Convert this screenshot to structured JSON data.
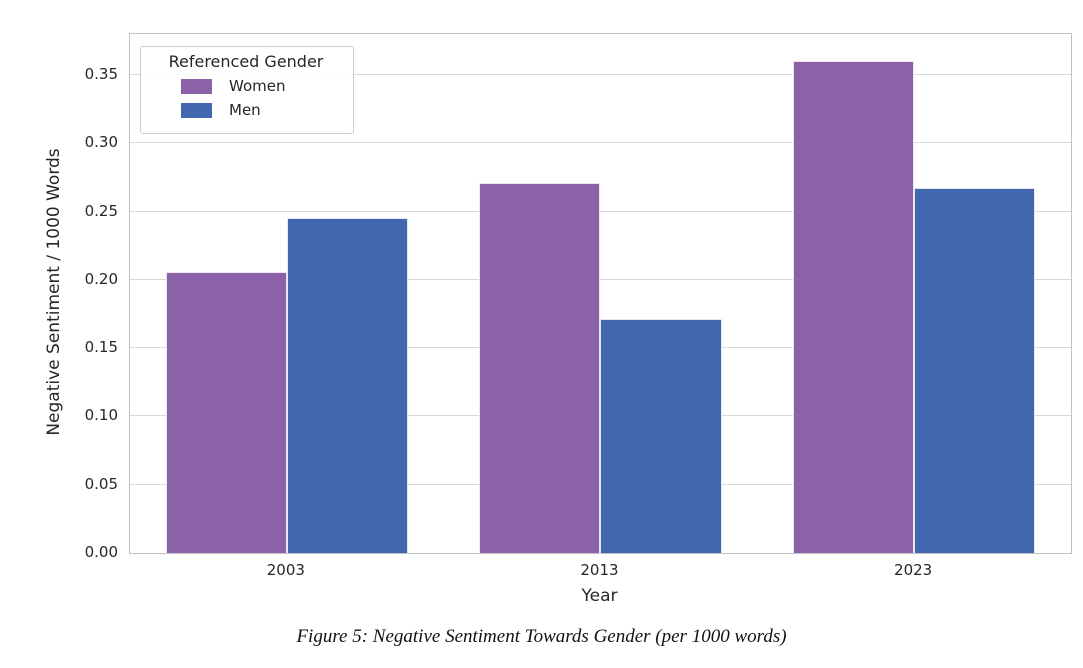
{
  "figure": {
    "caption": "Figure 5: Negative Sentiment Towards Gender (per 1000 words)"
  },
  "chart_data": {
    "type": "bar",
    "title": "",
    "categories": [
      "2003",
      "2013",
      "2023"
    ],
    "series": [
      {
        "name": "Women",
        "color": "#8B62A8",
        "values": [
          0.206,
          0.271,
          0.36
        ]
      },
      {
        "name": "Men",
        "color": "#4366B1",
        "values": [
          0.245,
          0.171,
          0.267
        ]
      }
    ],
    "xlabel": "Year",
    "ylabel": "Negative Sentiment / 1000 Words",
    "yticks": [
      "0.00",
      "0.05",
      "0.10",
      "0.15",
      "0.20",
      "0.25",
      "0.30",
      "0.35"
    ],
    "ylim": [
      0,
      0.38
    ],
    "grid": true,
    "legend": {
      "title": "Referenced Gender",
      "position": "upper left",
      "items": [
        {
          "label": "Women",
          "color": "#8B62A8"
        },
        {
          "label": "Men",
          "color": "#4366B1"
        }
      ]
    }
  }
}
